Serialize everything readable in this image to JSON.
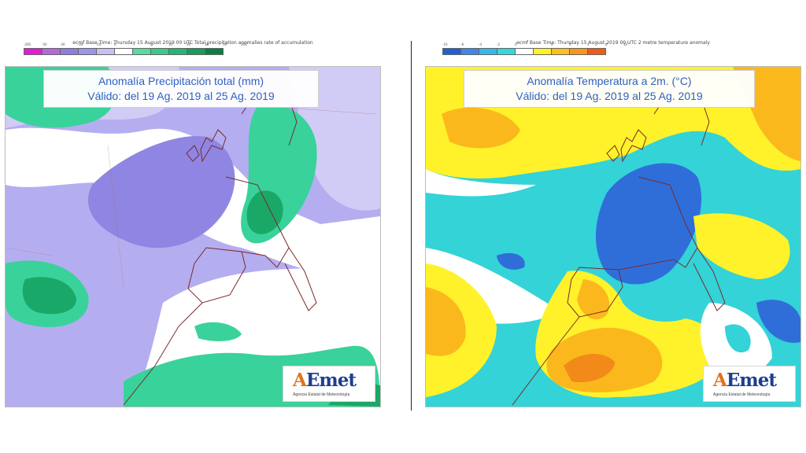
{
  "left_panel": {
    "header": "ecmf  Base Time: Thursday 15 August 2019 00 UTC Total precipitation anomalies rate of accumulation",
    "colorbar": {
      "labels": [
        "-200",
        "-50",
        "-30",
        "-20",
        "-10",
        "0",
        "",
        "0",
        "10",
        "20",
        "30",
        "50",
        "200"
      ],
      "colors": [
        "#e51cd6",
        "#b36ad8",
        "#8c7de0",
        "#9c95ea",
        "#c4c1f2",
        "#ffffff",
        "#58dba0",
        "#3bc98a",
        "#27b474",
        "#169c5b",
        "#0b7d45"
      ]
    },
    "title_line1": "Anomalía Precipitación total (mm)",
    "title_line2": "Válido: del 19 Ag. 2019 al 25 Ag. 2019",
    "logo_text": "AEmet",
    "logo_subtitle": "Agencia Estatal de Meteorología"
  },
  "right_panel": {
    "header": "ecmf  Base Time: Thursday 15 August 2019 00 UTC 2 metre temperature anomaly",
    "colorbar": {
      "labels": [
        "-10",
        "-8",
        "-4",
        "-2",
        "0",
        "",
        "0",
        "2",
        "4",
        "8",
        "10"
      ],
      "colors": [
        "#1f5fd1",
        "#3f86e6",
        "#37b7e8",
        "#33d8dc",
        "#ffffff",
        "#fff22a",
        "#fbc01d",
        "#f7961a",
        "#ef5a19"
      ]
    },
    "title_line1": "Anomalía Temperatura a 2m. (°C)",
    "title_line2": "Válido: del 19 Ag. 2019 al 25 Ag. 2019",
    "logo_text": "AEmet",
    "logo_subtitle": "Agencia Estatal de Meteorología"
  },
  "colors": {
    "precip_white": "#ffffff",
    "precip_light_lav": "#d0ccf5",
    "precip_lav": "#b4aef0",
    "precip_purple": "#8f86e3",
    "precip_green": "#39d29a",
    "precip_dark_green": "#1aa868",
    "temp_yellow": "#fff22a",
    "temp_orange": "#fbb81d",
    "temp_dark_orange": "#f28a1a",
    "temp_cyan": "#33d3d8",
    "temp_blue": "#2f6ed9",
    "temp_white": "#ffffff",
    "coast": "#7a2a2a",
    "title_text": "#2f5fbf"
  }
}
